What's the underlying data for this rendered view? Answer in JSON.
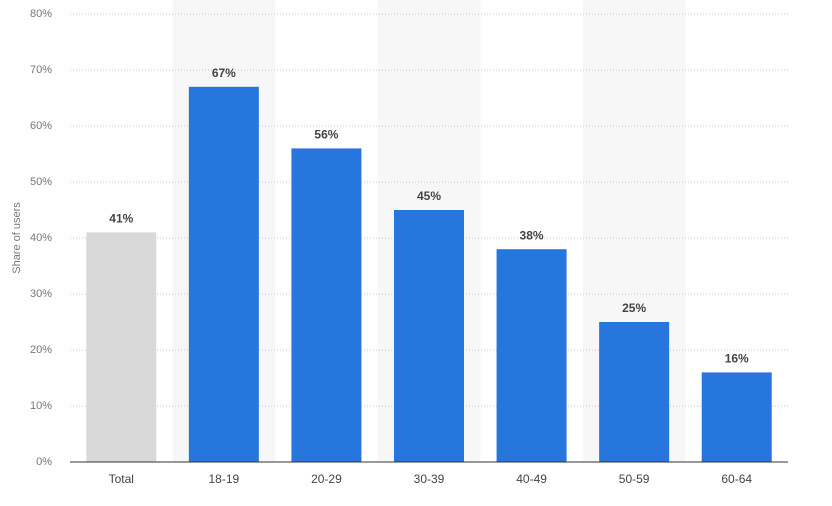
{
  "chart_data": {
    "type": "bar",
    "y_label": "Share of users",
    "categories": [
      "Total",
      "18-19",
      "20-29",
      "30-39",
      "40-49",
      "50-59",
      "60-64"
    ],
    "values": [
      41,
      67,
      56,
      45,
      38,
      25,
      16
    ],
    "value_labels": [
      "41%",
      "67%",
      "56%",
      "45%",
      "38%",
      "25%",
      "16%"
    ],
    "colors": [
      "#d9d9d9",
      "#2776dd",
      "#2776dd",
      "#2776dd",
      "#2776dd",
      "#2776dd",
      "#2776dd"
    ],
    "ylim": [
      0,
      80
    ],
    "yticks": [
      {
        "value": 0,
        "label": "0%"
      },
      {
        "value": 10,
        "label": "10%"
      },
      {
        "value": 20,
        "label": "20%"
      },
      {
        "value": 30,
        "label": "30%"
      },
      {
        "value": 40,
        "label": "40%"
      },
      {
        "value": 50,
        "label": "50%"
      },
      {
        "value": 60,
        "label": "60%"
      },
      {
        "value": 70,
        "label": "70%"
      },
      {
        "value": 80,
        "label": "80%"
      }
    ],
    "grid": true
  }
}
